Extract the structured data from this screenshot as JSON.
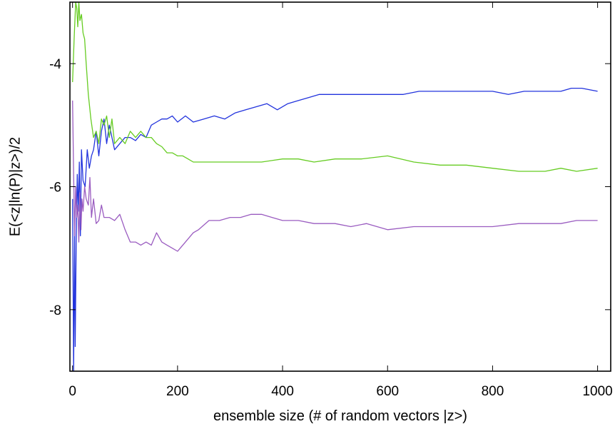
{
  "chart_data": {
    "type": "line",
    "title": "",
    "xlabel": "ensemble size (# of random vectors |z>)",
    "ylabel": "E(<z|ln(P)|z>)/2",
    "xlim": [
      -5,
      1025
    ],
    "ylim": [
      -9.0,
      -3.0
    ],
    "x_ticks": [
      0,
      200,
      400,
      600,
      800,
      1000
    ],
    "y_ticks": [
      -8,
      -6,
      -4
    ],
    "grid": false,
    "legend": "none",
    "series": [
      {
        "color": "#2233dd",
        "x": [
          0,
          2,
          4,
          5,
          7,
          9,
          11,
          13,
          15,
          17,
          20,
          24,
          28,
          32,
          36,
          40,
          45,
          50,
          55,
          60,
          65,
          70,
          80,
          90,
          100,
          110,
          120,
          130,
          140,
          150,
          160,
          170,
          180,
          190,
          200,
          215,
          230,
          250,
          270,
          290,
          310,
          330,
          350,
          370,
          390,
          410,
          430,
          450,
          470,
          500,
          530,
          560,
          600,
          630,
          660,
          700,
          730,
          760,
          800,
          830,
          860,
          900,
          930,
          950,
          970,
          1000
        ],
        "y": [
          -6.2,
          -9.0,
          -6.7,
          -8.6,
          -6.9,
          -5.8,
          -6.4,
          -5.6,
          -6.8,
          -5.4,
          -5.9,
          -6.0,
          -5.4,
          -5.7,
          -5.5,
          -5.4,
          -5.1,
          -5.5,
          -5.1,
          -4.9,
          -5.3,
          -5.0,
          -5.4,
          -5.3,
          -5.2,
          -5.2,
          -5.25,
          -5.15,
          -5.2,
          -5.0,
          -4.95,
          -4.9,
          -4.9,
          -4.85,
          -4.95,
          -4.85,
          -4.95,
          -4.9,
          -4.85,
          -4.9,
          -4.8,
          -4.75,
          -4.7,
          -4.65,
          -4.75,
          -4.65,
          -4.6,
          -4.55,
          -4.5,
          -4.5,
          -4.5,
          -4.5,
          -4.5,
          -4.5,
          -4.45,
          -4.45,
          -4.45,
          -4.45,
          -4.45,
          -4.5,
          -4.45,
          -4.45,
          -4.45,
          -4.4,
          -4.4,
          -4.45
        ]
      },
      {
        "color": "#66cc22",
        "x": [
          0,
          3,
          6,
          8,
          10,
          12,
          14,
          17,
          20,
          23,
          26,
          30,
          35,
          40,
          45,
          50,
          55,
          60,
          65,
          70,
          75,
          80,
          90,
          100,
          110,
          120,
          130,
          140,
          150,
          160,
          170,
          180,
          190,
          200,
          210,
          220,
          230,
          240,
          260,
          280,
          300,
          330,
          360,
          400,
          430,
          460,
          500,
          550,
          600,
          650,
          700,
          750,
          800,
          850,
          880,
          900,
          930,
          960,
          1000
        ],
        "y": [
          -4.3,
          -3.6,
          -3.0,
          -3.1,
          -3.4,
          -3.0,
          -3.3,
          -3.2,
          -3.5,
          -3.6,
          -4.0,
          -4.5,
          -4.9,
          -5.2,
          -5.1,
          -5.3,
          -4.9,
          -5.0,
          -4.85,
          -5.2,
          -4.9,
          -5.3,
          -5.2,
          -5.3,
          -5.1,
          -5.2,
          -5.1,
          -5.2,
          -5.2,
          -5.3,
          -5.35,
          -5.45,
          -5.45,
          -5.5,
          -5.5,
          -5.55,
          -5.6,
          -5.6,
          -5.6,
          -5.6,
          -5.6,
          -5.6,
          -5.6,
          -5.55,
          -5.55,
          -5.6,
          -5.55,
          -5.55,
          -5.5,
          -5.6,
          -5.65,
          -5.65,
          -5.7,
          -5.75,
          -5.75,
          -5.75,
          -5.7,
          -5.75,
          -5.7
        ]
      },
      {
        "color": "#9a5cc0",
        "x": [
          0,
          2,
          4,
          6,
          8,
          10,
          12,
          14,
          16,
          18,
          20,
          23,
          26,
          30,
          33,
          36,
          40,
          45,
          50,
          55,
          60,
          70,
          80,
          90,
          100,
          110,
          120,
          130,
          140,
          150,
          160,
          170,
          180,
          190,
          200,
          210,
          220,
          230,
          240,
          260,
          280,
          300,
          320,
          340,
          360,
          380,
          400,
          430,
          460,
          500,
          530,
          560,
          600,
          650,
          700,
          750,
          800,
          850,
          900,
          930,
          960,
          1000
        ],
        "y": [
          -4.6,
          -5.8,
          -6.8,
          -6.0,
          -6.5,
          -6.3,
          -6.9,
          -6.1,
          -6.7,
          -6.2,
          -6.4,
          -6.0,
          -6.2,
          -6.3,
          -5.85,
          -6.5,
          -6.2,
          -6.6,
          -6.55,
          -6.3,
          -6.5,
          -6.5,
          -6.55,
          -6.45,
          -6.7,
          -6.9,
          -6.9,
          -6.95,
          -6.9,
          -6.95,
          -6.75,
          -6.9,
          -6.95,
          -7.0,
          -7.05,
          -6.95,
          -6.85,
          -6.75,
          -6.7,
          -6.55,
          -6.55,
          -6.5,
          -6.5,
          -6.45,
          -6.45,
          -6.5,
          -6.55,
          -6.55,
          -6.6,
          -6.6,
          -6.65,
          -6.6,
          -6.7,
          -6.65,
          -6.65,
          -6.65,
          -6.65,
          -6.6,
          -6.6,
          -6.6,
          -6.55,
          -6.55
        ]
      }
    ]
  }
}
